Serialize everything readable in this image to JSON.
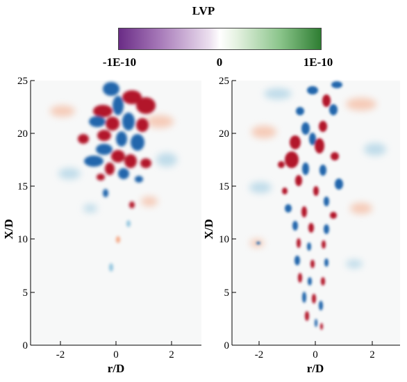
{
  "colorbar": {
    "title": "LVP",
    "min_label": "-1E-10",
    "mid_label": "0",
    "max_label": "1E-10",
    "colors": [
      "#6a2c86",
      "#f5eff7",
      "#2e7d32"
    ]
  },
  "panels": [
    {
      "id": "left",
      "xlabel": "r/D",
      "ylabel": "X/D",
      "xticks": [
        "-2",
        "0",
        "2"
      ],
      "yticks": [
        "0",
        "5",
        "10",
        "15",
        "20",
        "25"
      ]
    },
    {
      "id": "right",
      "xlabel": "r/D",
      "ylabel": "X/D",
      "xticks": [
        "-2",
        "0",
        "2"
      ],
      "yticks": [
        "0",
        "5",
        "10",
        "15",
        "20",
        "25"
      ]
    }
  ],
  "field_colors": {
    "positive": "#b2182b",
    "negative": "#2166ac",
    "positive_light": "#f4a582",
    "negative_light": "#92c5de"
  }
}
